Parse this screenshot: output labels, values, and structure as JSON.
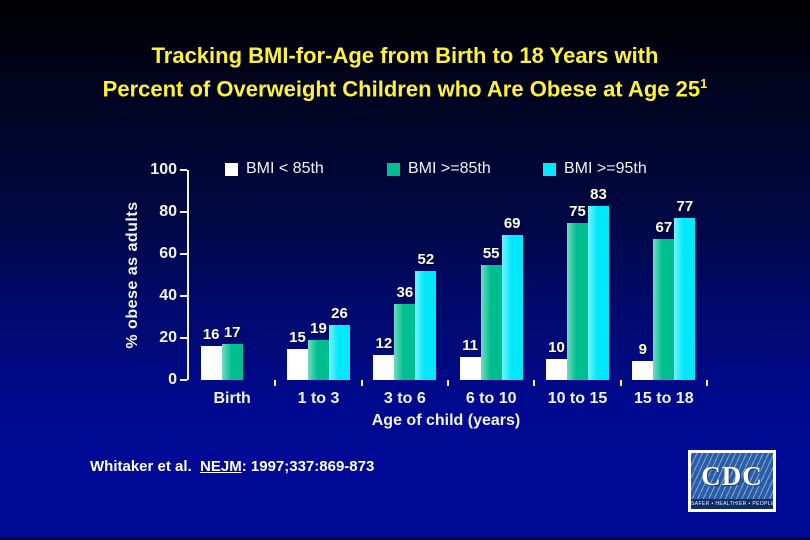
{
  "slide": {
    "title_line1": "Tracking BMI-for-Age from Birth to 18 Years with",
    "title_line2": "Percent of Overweight Children who Are Obese at Age 25",
    "title_superscript": "1"
  },
  "chart_data": {
    "type": "bar",
    "categories": [
      "Birth",
      "1 to 3",
      "3 to 6",
      "6 to 10",
      "10 to 15",
      "15 to 18"
    ],
    "series": [
      {
        "name": "BMI < 85th",
        "color": "#ffffff",
        "values": [
          16,
          15,
          12,
          11,
          10,
          9
        ]
      },
      {
        "name": "BMI >=85th",
        "color": "#00be8f",
        "values": [
          17,
          19,
          36,
          55,
          75,
          67
        ]
      },
      {
        "name": "BMI >=95th",
        "color": "#00e8fa",
        "values": [
          null,
          26,
          52,
          69,
          83,
          77
        ]
      }
    ],
    "title": "",
    "xlabel": "Age of child (years)",
    "ylabel": "% obese as adults",
    "ylim": [
      0,
      100
    ],
    "yticks": [
      0,
      20,
      40,
      60,
      80,
      100
    ],
    "grid": false,
    "legend_position": "top"
  },
  "footer": {
    "citation_prefix": "Whitaker et al.",
    "citation_journal": "NEJM",
    "citation_rest": ": 1997;337:869-873"
  },
  "logo": {
    "text": "CDC",
    "tagline": "SAFER • HEALTHIER • PEOPLE™"
  },
  "colors": {
    "background_top": "#000002",
    "background_bottom": "#000a94",
    "title_yellow": "#fdf235",
    "axis_text": "#f2f2f2",
    "bar_white": "#ffffff",
    "bar_teal": "#00be8f",
    "bar_cyan": "#00e8fa",
    "cdc_blue": "#2a5da8"
  }
}
